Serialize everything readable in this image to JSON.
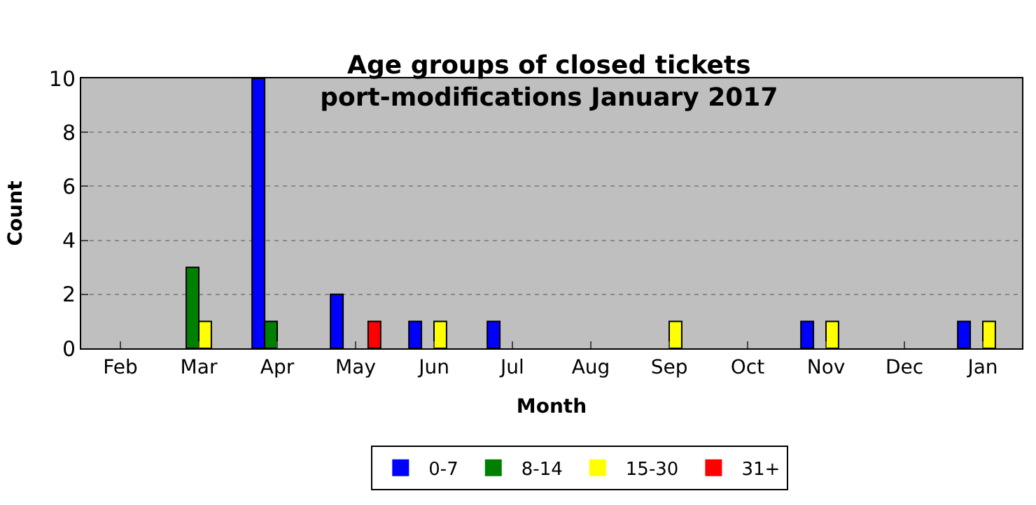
{
  "chart_data": {
    "type": "bar",
    "title": "Age groups of closed tickets\nport-modifications January 2017",
    "xlabel": "Month",
    "ylabel": "Count",
    "categories": [
      "Feb",
      "Mar",
      "Apr",
      "May",
      "Jun",
      "Jul",
      "Aug",
      "Sep",
      "Oct",
      "Nov",
      "Dec",
      "Jan"
    ],
    "series": [
      {
        "name": "0-7",
        "color": "#0000ff",
        "values": [
          0,
          0,
          10,
          2,
          1,
          1,
          0,
          0,
          0,
          1,
          0,
          1
        ]
      },
      {
        "name": "8-14",
        "color": "#008000",
        "values": [
          0,
          3,
          1,
          0,
          0,
          0,
          0,
          0,
          0,
          0,
          0,
          0
        ]
      },
      {
        "name": "15-30",
        "color": "#ffff00",
        "values": [
          0,
          1,
          0,
          0,
          1,
          0,
          0,
          1,
          0,
          1,
          0,
          1
        ]
      },
      {
        "name": "31+",
        "color": "#ff0000",
        "values": [
          0,
          0,
          0,
          1,
          0,
          0,
          0,
          0,
          0,
          0,
          0,
          0
        ]
      }
    ],
    "ylim": [
      0,
      10
    ],
    "yticks": [
      0,
      2,
      4,
      6,
      8,
      10
    ],
    "grid": "y",
    "legend": "bottom"
  }
}
